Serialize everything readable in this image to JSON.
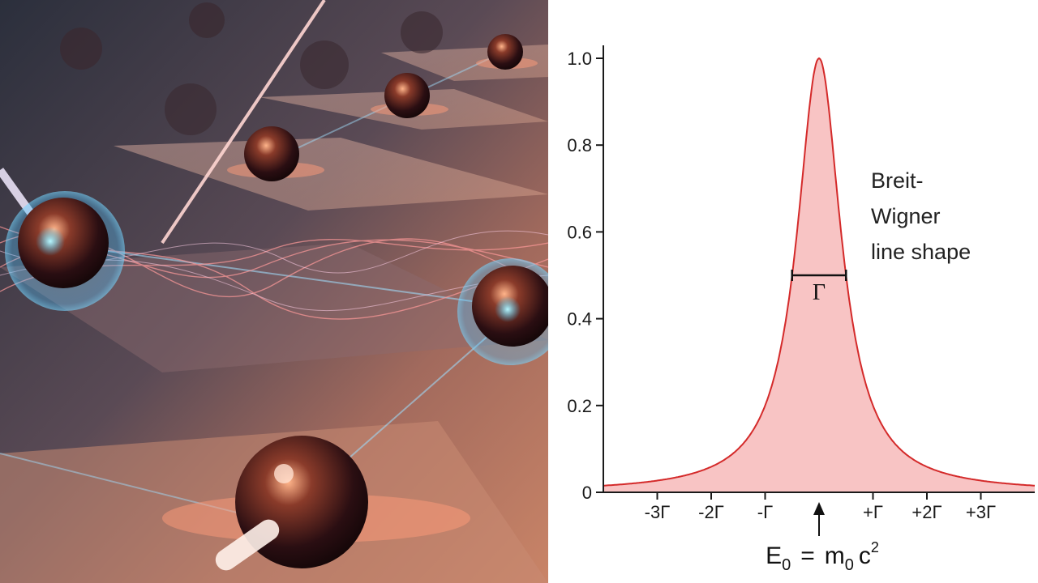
{
  "illustration": {
    "subject": "quantum-dots-network-render"
  },
  "chart_data": {
    "type": "area",
    "title": "",
    "annotation_lines": [
      "Breit-",
      "Wigner",
      "line shape"
    ],
    "gamma_symbol": "Γ",
    "ylim": [
      0,
      1.0
    ],
    "xlim": [
      -4,
      4
    ],
    "x_units": "Γ",
    "yticks": [
      0,
      0.2,
      0.4,
      0.6,
      0.8,
      1.0
    ],
    "ytick_labels": [
      "0",
      "0.2",
      "0.4",
      "0.6",
      "0.8",
      "1.0"
    ],
    "xticks": [
      -3,
      -2,
      -1,
      1,
      2,
      3
    ],
    "xtick_labels": [
      "-3Γ",
      "-2Γ",
      "-Γ",
      "+Γ",
      "+2Γ",
      "+3Γ"
    ],
    "peak_x": 0,
    "peak_y": 1.0,
    "fwhm": 1,
    "half_max": 0.5,
    "curve": {
      "x": [
        -4,
        -3.5,
        -3,
        -2.5,
        -2,
        -1.5,
        -1.25,
        -1,
        -0.75,
        -0.5,
        -0.375,
        -0.25,
        -0.125,
        0,
        0.125,
        0.25,
        0.375,
        0.5,
        0.75,
        1,
        1.25,
        1.5,
        2,
        2.5,
        3,
        3.5,
        4
      ],
      "y": [
        0.015,
        0.02,
        0.027,
        0.038,
        0.059,
        0.1,
        0.138,
        0.2,
        0.308,
        0.5,
        0.64,
        0.8,
        0.941,
        1.0,
        0.941,
        0.8,
        0.64,
        0.5,
        0.308,
        0.2,
        0.138,
        0.1,
        0.059,
        0.038,
        0.027,
        0.02,
        0.015
      ]
    },
    "equation": {
      "E": "E",
      "E_sub": "0",
      "equals": "=",
      "m": "m",
      "m_sub": "0",
      "c": "c",
      "c_sup": "2"
    },
    "colors": {
      "line": "#d42a2a",
      "fill": "#f8c4c4",
      "axis": "#1a1a1a"
    }
  }
}
